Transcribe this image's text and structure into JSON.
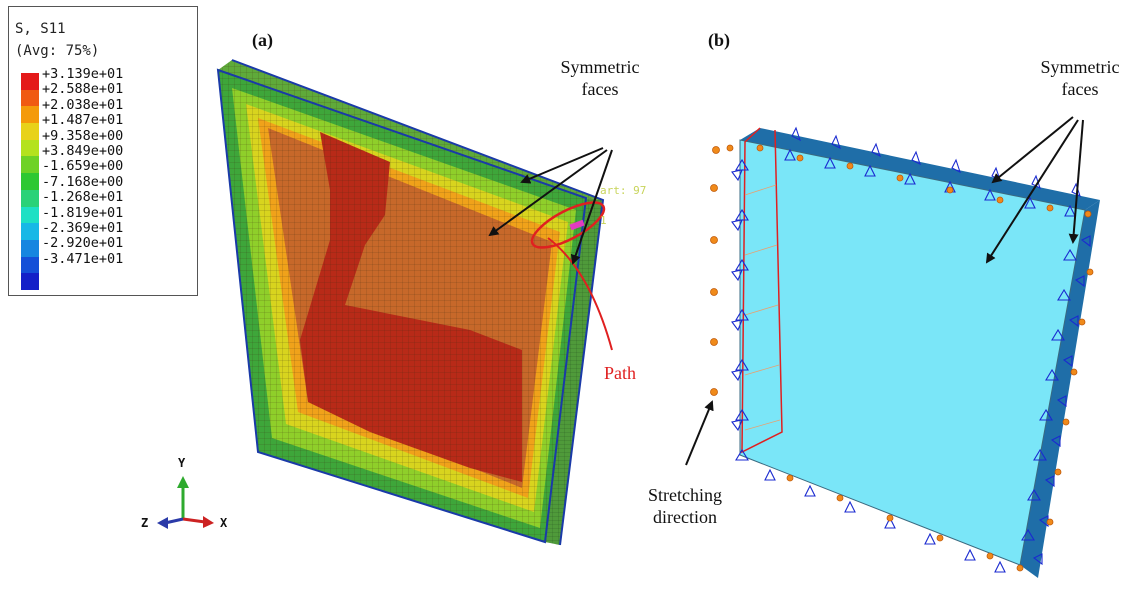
{
  "legend": {
    "title_line1": "S, S11",
    "title_line2": "(Avg: 75%)",
    "values": [
      "+3.139e+01",
      "+2.588e+01",
      "+2.038e+01",
      "+1.487e+01",
      "+9.358e+00",
      "+3.849e+00",
      "-1.659e+00",
      "-7.168e+00",
      "-1.268e+01",
      "-1.819e+01",
      "-2.369e+01",
      "-2.920e+01",
      "-3.471e+01"
    ],
    "colors": [
      "#e41a1a",
      "#f05a12",
      "#f49a0a",
      "#e8d21a",
      "#b4e21e",
      "#6ed226",
      "#2ec832",
      "#2ad278",
      "#1ee0c4",
      "#18b8e6",
      "#1686e0",
      "#1450d8",
      "#1420c8"
    ]
  },
  "panel_a": {
    "label": "(a)",
    "annotation_symmetric": [
      "Symmetric",
      "faces"
    ],
    "annotation_path": "Path",
    "probe_text_1": "art: 97",
    "probe_text_2": "1"
  },
  "panel_b": {
    "label": "(b)",
    "annotation_symmetric": [
      "Symmetric",
      "faces"
    ],
    "annotation_stretch": [
      "Stretching",
      "direction"
    ]
  },
  "triad": {
    "y": "Y",
    "z": "Z",
    "x": "X"
  }
}
